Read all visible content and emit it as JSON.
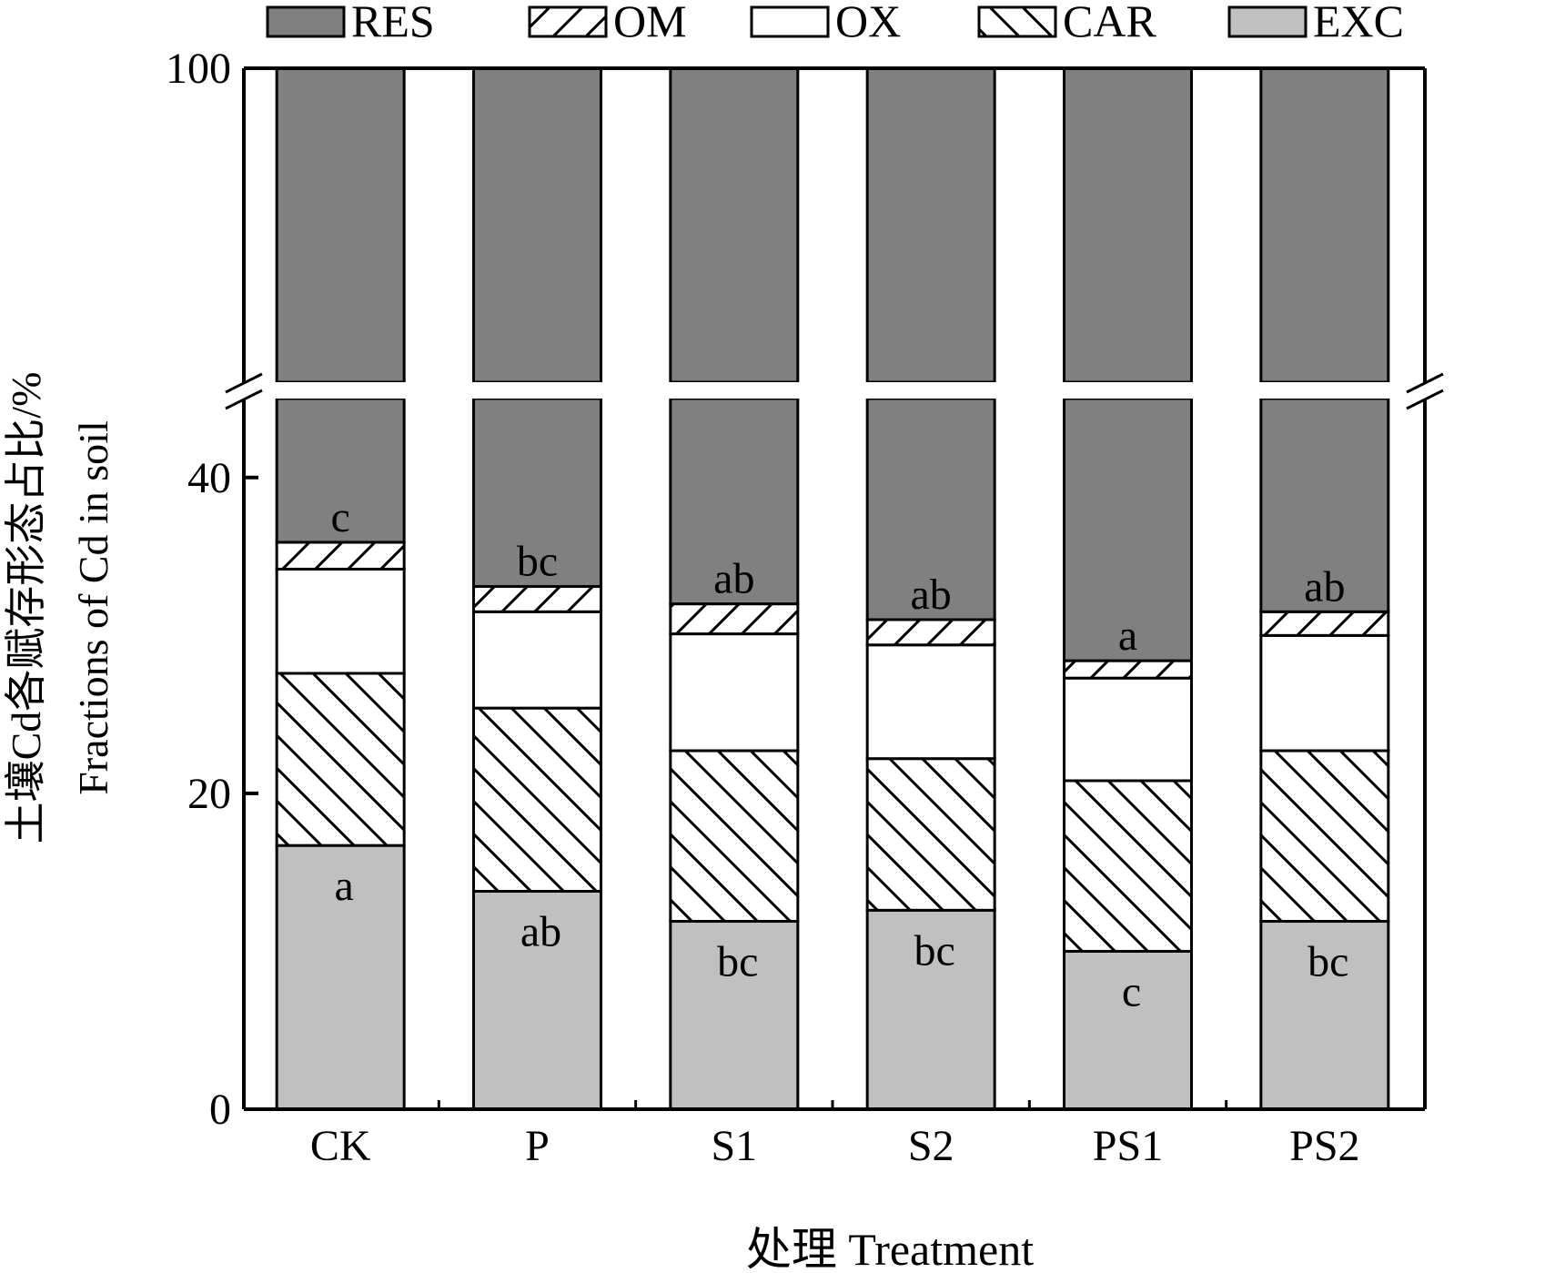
{
  "chart_data": {
    "type": "bar",
    "stacked": true,
    "xlabel": "处理 Treatment",
    "ylabel_cn": "土壤Cd各赋存形态占比/%",
    "ylabel_en": "Fractions of Cd in soil",
    "yticks": [
      "0",
      "20",
      "40",
      "100"
    ],
    "ylim": [
      0,
      100
    ],
    "axis_break": [
      45,
      80
    ],
    "legend_position": "top",
    "categories": [
      "CK",
      "P",
      "S1",
      "S2",
      "PS1",
      "PS2"
    ],
    "series": [
      {
        "name": "EXC",
        "key": "exc",
        "values": [
          16.7,
          13.8,
          11.9,
          12.6,
          10.0,
          11.9
        ],
        "letters": [
          "a",
          "ab",
          "bc",
          "bc",
          "c",
          "bc"
        ]
      },
      {
        "name": "CAR",
        "key": "car",
        "values": [
          10.9,
          11.6,
          10.8,
          9.6,
          10.8,
          10.8
        ]
      },
      {
        "name": "OX",
        "key": "ox",
        "values": [
          6.6,
          6.1,
          7.4,
          7.2,
          6.5,
          7.3
        ]
      },
      {
        "name": "OM",
        "key": "om",
        "values": [
          1.7,
          1.6,
          1.9,
          1.6,
          1.1,
          1.5
        ],
        "letters": [
          "c",
          "bc",
          "ab",
          "ab",
          "a",
          "ab"
        ]
      },
      {
        "name": "RES",
        "key": "res",
        "values": [
          64.1,
          66.9,
          68.0,
          69.0,
          71.6,
          68.5
        ]
      }
    ],
    "legend_order": [
      "RES",
      "OM",
      "OX",
      "CAR",
      "EXC"
    ],
    "colors": {
      "res": "#808080",
      "exc": "#c0c0c0",
      "ox": "#ffffff",
      "om": "#ffffff",
      "car": "#ffffff"
    }
  }
}
